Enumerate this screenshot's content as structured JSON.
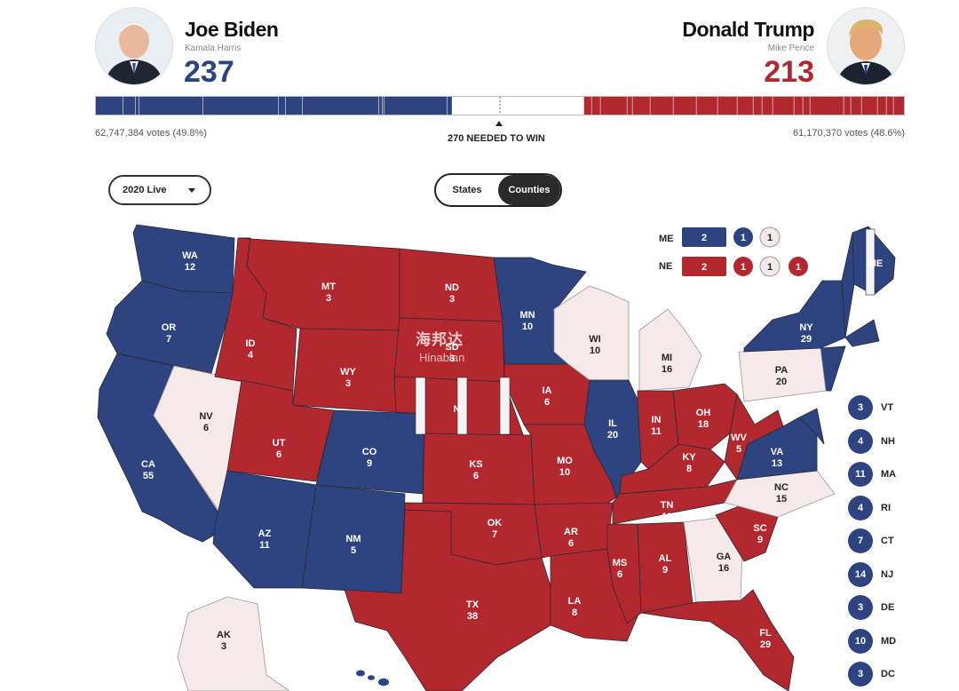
{
  "candidates": {
    "dem": {
      "name": "Joe Biden",
      "running_mate": "Kamala Harris",
      "electoral_votes": "237",
      "popular_votes": "62,747,384 votes (49.8%)",
      "avatar_icon": "biden-portrait",
      "color": "#2e4481"
    },
    "rep": {
      "name": "Donald Trump",
      "running_mate": "Mike Pence",
      "electoral_votes": "213",
      "popular_votes": "61,170,370 votes (48.6%)",
      "avatar_icon": "trump-portrait",
      "color": "#b3282f"
    }
  },
  "bar": {
    "needed_label": "270 NEEDED TO WIN",
    "total": 538,
    "dem": 237,
    "rep": 213
  },
  "controls": {
    "year_select": "2020 Live",
    "view_toggle": {
      "states_label": "States",
      "counties_label": "Counties",
      "selected": "Counties"
    }
  },
  "colors": {
    "dem": "#2e4481",
    "rep": "#b3282f",
    "uncalled": "#f5e9ea",
    "map_stroke": "#2a2a33"
  },
  "split_states": {
    "ME": {
      "label": "ME",
      "statewide": "2",
      "districts": [
        "1",
        "1"
      ],
      "winners": [
        "dem",
        "dem",
        "uncalled"
      ]
    },
    "NE": {
      "label": "NE",
      "statewide": "2",
      "districts": [
        "1",
        "1",
        "1"
      ],
      "winners": [
        "rep",
        "rep",
        "uncalled",
        "rep"
      ]
    }
  },
  "map_states": {
    "WA": {
      "abbr": "WA",
      "ev": "12",
      "winner": "dem"
    },
    "OR": {
      "abbr": "OR",
      "ev": "7",
      "winner": "dem"
    },
    "CA": {
      "abbr": "CA",
      "ev": "55",
      "winner": "dem"
    },
    "NV": {
      "abbr": "NV",
      "ev": "6",
      "winner": "uncalled"
    },
    "ID": {
      "abbr": "ID",
      "ev": "4",
      "winner": "rep"
    },
    "MT": {
      "abbr": "MT",
      "ev": "3",
      "winner": "rep"
    },
    "WY": {
      "abbr": "WY",
      "ev": "3",
      "winner": "rep"
    },
    "UT": {
      "abbr": "UT",
      "ev": "6",
      "winner": "rep"
    },
    "CO": {
      "abbr": "CO",
      "ev": "9",
      "winner": "dem"
    },
    "AZ": {
      "abbr": "AZ",
      "ev": "11",
      "winner": "dem"
    },
    "NM": {
      "abbr": "NM",
      "ev": "5",
      "winner": "dem"
    },
    "ND": {
      "abbr": "ND",
      "ev": "3",
      "winner": "rep"
    },
    "SD": {
      "abbr": "SD",
      "ev": "3",
      "winner": "rep"
    },
    "NE": {
      "abbr": "NE",
      "ev": "",
      "winner": "rep"
    },
    "KS": {
      "abbr": "KS",
      "ev": "6",
      "winner": "rep"
    },
    "OK": {
      "abbr": "OK",
      "ev": "7",
      "winner": "rep"
    },
    "TX": {
      "abbr": "TX",
      "ev": "38",
      "winner": "rep"
    },
    "MN": {
      "abbr": "MN",
      "ev": "10",
      "winner": "dem"
    },
    "IA": {
      "abbr": "IA",
      "ev": "6",
      "winner": "rep"
    },
    "MO": {
      "abbr": "MO",
      "ev": "10",
      "winner": "rep"
    },
    "AR": {
      "abbr": "AR",
      "ev": "6",
      "winner": "rep"
    },
    "LA": {
      "abbr": "LA",
      "ev": "8",
      "winner": "rep"
    },
    "WI": {
      "abbr": "WI",
      "ev": "10",
      "winner": "uncalled"
    },
    "IL": {
      "abbr": "IL",
      "ev": "20",
      "winner": "dem"
    },
    "MI": {
      "abbr": "MI",
      "ev": "16",
      "winner": "uncalled"
    },
    "IN": {
      "abbr": "IN",
      "ev": "11",
      "winner": "rep"
    },
    "OH": {
      "abbr": "OH",
      "ev": "18",
      "winner": "rep"
    },
    "KY": {
      "abbr": "KY",
      "ev": "8",
      "winner": "rep"
    },
    "TN": {
      "abbr": "TN",
      "ev": "11",
      "winner": "rep"
    },
    "MS": {
      "abbr": "MS",
      "ev": "6",
      "winner": "rep"
    },
    "AL": {
      "abbr": "AL",
      "ev": "9",
      "winner": "rep"
    },
    "GA": {
      "abbr": "GA",
      "ev": "16",
      "winner": "uncalled"
    },
    "FL": {
      "abbr": "FL",
      "ev": "29",
      "winner": "rep"
    },
    "SC": {
      "abbr": "SC",
      "ev": "9",
      "winner": "rep"
    },
    "NC": {
      "abbr": "NC",
      "ev": "15",
      "winner": "uncalled"
    },
    "VA": {
      "abbr": "VA",
      "ev": "13",
      "winner": "dem"
    },
    "WV": {
      "abbr": "WV",
      "ev": "5",
      "winner": "rep"
    },
    "PA": {
      "abbr": "PA",
      "ev": "20",
      "winner": "uncalled"
    },
    "NY": {
      "abbr": "NY",
      "ev": "29",
      "winner": "dem"
    },
    "ME": {
      "abbr": "ME",
      "ev": "",
      "winner": "dem"
    },
    "AK": {
      "abbr": "AK",
      "ev": "3",
      "winner": "uncalled"
    }
  },
  "small_states": [
    {
      "abbr": "VT",
      "ev": "3",
      "winner": "dem"
    },
    {
      "abbr": "NH",
      "ev": "4",
      "winner": "dem"
    },
    {
      "abbr": "MA",
      "ev": "11",
      "winner": "dem"
    },
    {
      "abbr": "RI",
      "ev": "4",
      "winner": "dem"
    },
    {
      "abbr": "CT",
      "ev": "7",
      "winner": "dem"
    },
    {
      "abbr": "NJ",
      "ev": "14",
      "winner": "dem"
    },
    {
      "abbr": "DE",
      "ev": "3",
      "winner": "dem"
    },
    {
      "abbr": "MD",
      "ev": "10",
      "winner": "dem"
    },
    {
      "abbr": "DC",
      "ev": "3",
      "winner": "dem"
    }
  ],
  "watermark": {
    "cn": "海邦达",
    "en": "Hinabian"
  }
}
